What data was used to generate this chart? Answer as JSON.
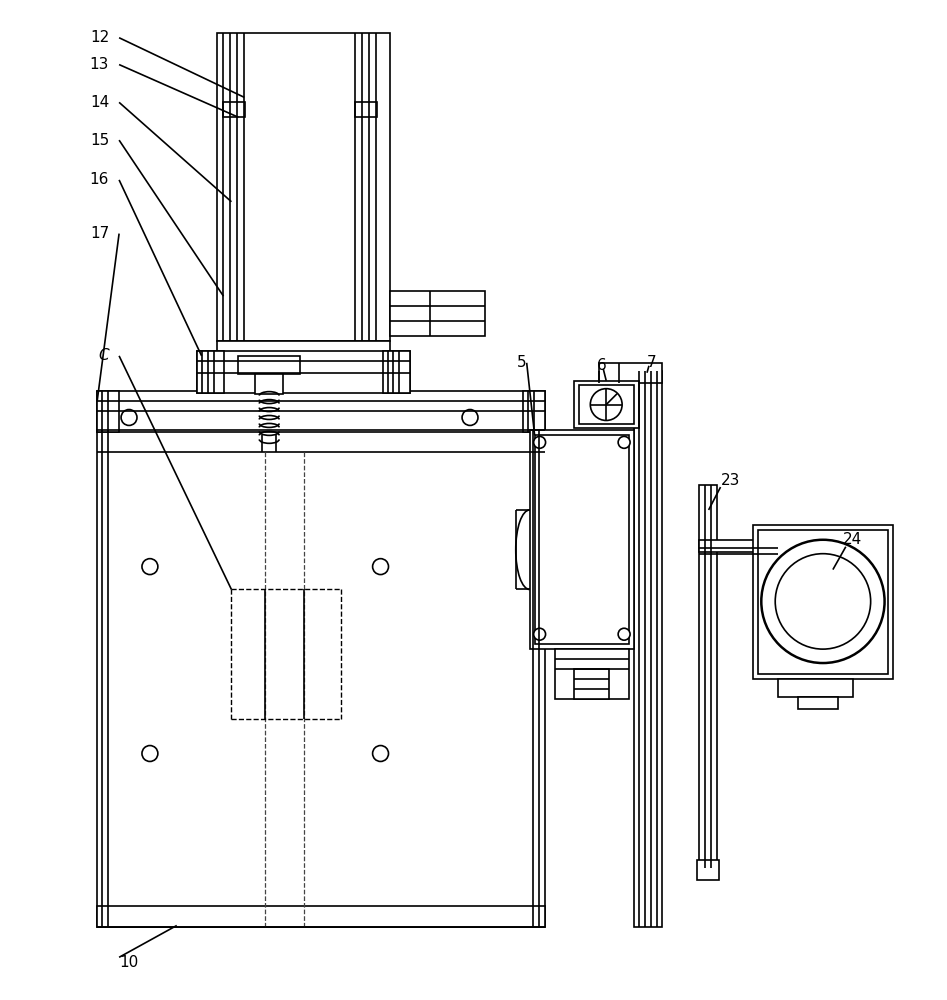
{
  "bg_color": "#ffffff",
  "lc": "#000000",
  "lw": 1.2,
  "fig_w": 9.47,
  "fig_h": 10.0
}
